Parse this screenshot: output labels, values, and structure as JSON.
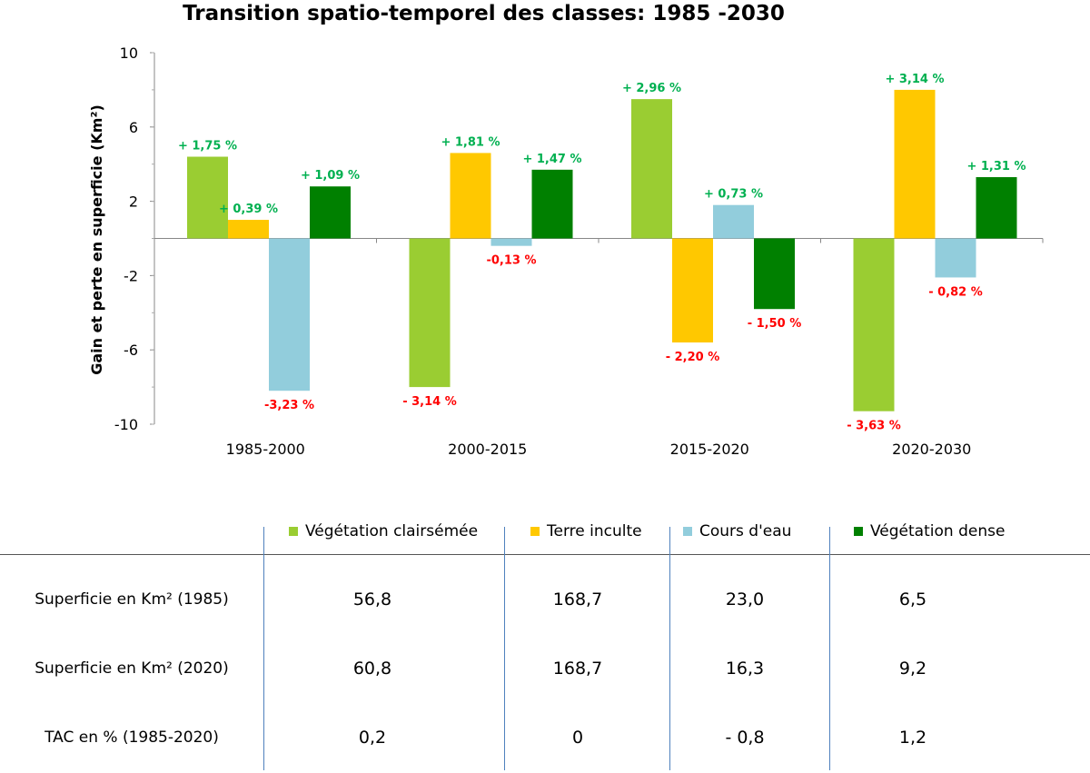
{
  "chart_data": {
    "type": "bar",
    "title": "Transition spatio-temporel des classes: 1985 -2030",
    "ylabel": "Gain et perte en  superficie (Km²)",
    "xlabel": "",
    "ylim": [
      -10,
      10
    ],
    "yticks": [
      "10",
      "6",
      "2",
      "-2",
      "-6",
      "-10"
    ],
    "ytick_values": [
      10,
      6,
      2,
      -2,
      -6,
      -10
    ],
    "categories": [
      "1985-2000",
      "2000-2015",
      "2015-2020",
      "2020-2030"
    ],
    "series": [
      {
        "name": "Végétation clairsémée",
        "color": "#9ACD32",
        "values": [
          4.4,
          -8.0,
          7.5,
          -9.3
        ],
        "labels": [
          "+ 1,75 %",
          "- 3,14 %",
          "+ 2,96 %",
          "- 3,63 %"
        ]
      },
      {
        "name": "Terre inculte",
        "color": "#FFC800",
        "values": [
          1.0,
          4.6,
          -5.6,
          8.0
        ],
        "labels": [
          "+ 0,39 %",
          "+ 1,81 %",
          "- 2,20 %",
          "+ 3,14 %"
        ]
      },
      {
        "name": "Cours d'eau",
        "color": "#92CDDC",
        "values": [
          -8.2,
          -0.4,
          1.8,
          -2.1
        ],
        "labels": [
          "-3,23 %",
          "-0,13 %",
          "+ 0,73 %",
          "- 0,82 %"
        ]
      },
      {
        "name": "Végétation dense",
        "color": "#008000",
        "values": [
          2.8,
          3.7,
          -3.8,
          3.3
        ],
        "labels": [
          "+ 1,09 %",
          "+ 1,47 %",
          "- 1,50 %",
          "+ 1,31 %"
        ]
      }
    ],
    "label_colors": {
      "positive": "#00B050",
      "negative": "#FF0000"
    },
    "grid": false,
    "legend_position": "bottom (data table)"
  },
  "table": {
    "rows": [
      {
        "label": "Superficie en Km² (1985)",
        "values": [
          "56,8",
          "168,7",
          "23,0",
          "6,5"
        ]
      },
      {
        "label": "Superficie en Km² (2020)",
        "values": [
          "60,8",
          "168,7",
          "16,3",
          "9,2"
        ]
      },
      {
        "label": "TAC en % (1985-2020)",
        "values": [
          "0,2",
          "0",
          "- 0,8",
          "1,2"
        ]
      }
    ]
  }
}
